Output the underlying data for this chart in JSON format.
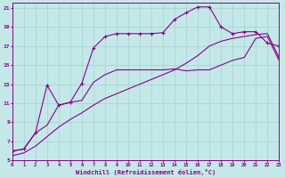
{
  "xlabel": "Windchill (Refroidissement éolien,°C)",
  "bg_color": "#c4e8e8",
  "line_color": "#880088",
  "grid_color": "#aad4d4",
  "xlim": [
    0,
    23
  ],
  "ylim": [
    5,
    21.5
  ],
  "xticks": [
    0,
    1,
    2,
    3,
    4,
    5,
    6,
    7,
    8,
    9,
    10,
    11,
    12,
    13,
    14,
    15,
    16,
    17,
    18,
    19,
    20,
    21,
    22,
    23
  ],
  "yticks": [
    5,
    7,
    9,
    11,
    13,
    15,
    17,
    19,
    21
  ],
  "curve_marked_x": [
    0,
    1,
    2,
    3,
    4,
    5,
    6,
    7,
    8,
    9,
    10,
    11,
    12,
    13,
    14,
    15,
    16,
    17,
    18,
    19,
    20,
    21,
    22,
    23
  ],
  "curve_marked_y": [
    6.0,
    6.2,
    7.9,
    12.9,
    10.8,
    11.1,
    13.1,
    16.8,
    18.0,
    18.3,
    18.3,
    18.3,
    18.3,
    18.4,
    19.8,
    20.5,
    21.1,
    21.1,
    19.0,
    18.3,
    18.5,
    18.5,
    17.3,
    17.0
  ],
  "curve_solid_x": [
    0,
    1,
    2,
    3,
    4,
    5,
    6,
    7,
    8,
    9,
    10,
    11,
    12,
    13,
    14,
    15,
    16,
    17,
    18,
    19,
    20,
    21,
    22,
    23
  ],
  "curve_solid_y": [
    6.0,
    6.2,
    7.9,
    8.7,
    10.8,
    11.1,
    11.3,
    13.2,
    14.0,
    14.5,
    14.5,
    14.5,
    14.5,
    14.5,
    14.6,
    14.4,
    14.5,
    14.5,
    15.0,
    15.5,
    15.8,
    17.8,
    18.0,
    15.5
  ],
  "curve_diag_x": [
    0,
    1,
    2,
    3,
    4,
    5,
    6,
    7,
    8,
    9,
    10,
    11,
    12,
    13,
    14,
    15,
    16,
    17,
    18,
    19,
    20,
    21,
    22,
    23
  ],
  "curve_diag_y": [
    5.5,
    5.8,
    6.5,
    7.5,
    8.5,
    9.3,
    10.0,
    10.8,
    11.5,
    12.0,
    12.5,
    13.0,
    13.5,
    14.0,
    14.5,
    15.2,
    16.0,
    17.0,
    17.5,
    17.8,
    18.0,
    18.2,
    18.3,
    15.8
  ]
}
